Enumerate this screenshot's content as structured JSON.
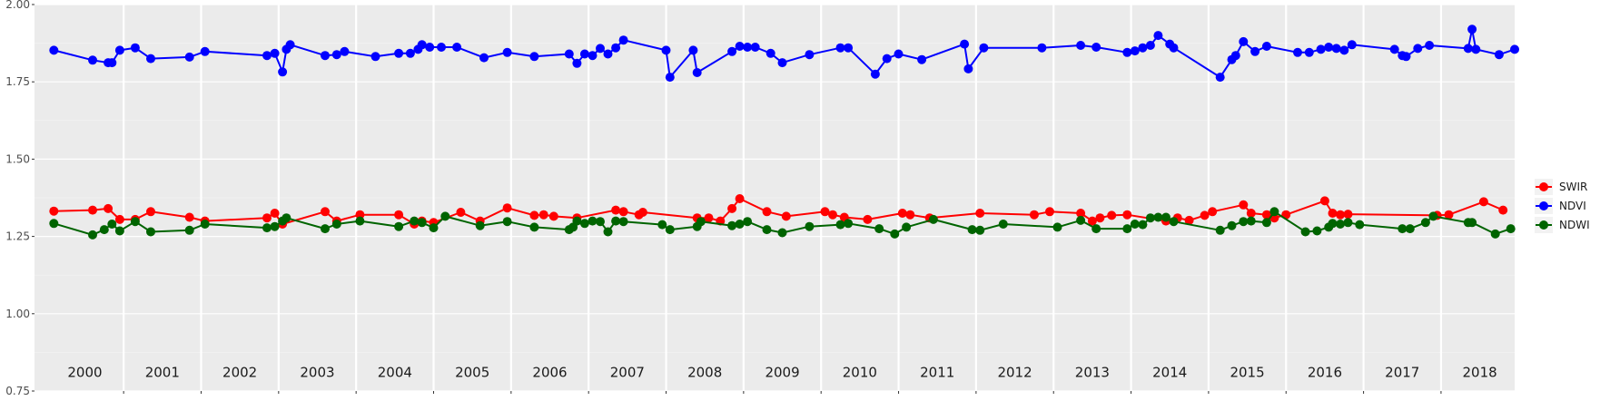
{
  "chart_data": {
    "type": "line",
    "xlim": [
      1999.85,
      2018.95
    ],
    "ylim": [
      0.75,
      2.0
    ],
    "y_ticks": [
      {
        "value": 0.75,
        "label": "0.75"
      },
      {
        "value": 1.0,
        "label": "1.00"
      },
      {
        "value": 1.25,
        "label": "1.25"
      },
      {
        "value": 1.5,
        "label": "1.50"
      },
      {
        "value": 1.75,
        "label": "1.75"
      },
      {
        "value": 2.0,
        "label": "2.00"
      }
    ],
    "year_labels": [
      "2000",
      "2001",
      "2002",
      "2003",
      "2004",
      "2005",
      "2006",
      "2007",
      "2008",
      "2009",
      "2010",
      "2011",
      "2012",
      "2013",
      "2014",
      "2015",
      "2016",
      "2017",
      "2018"
    ],
    "year_label_y": 0.81,
    "grid": true,
    "legend_position": "right",
    "series": [
      {
        "name": "SWIR",
        "color": "#ff0000",
        "points": [
          [
            2000.1,
            1.332
          ],
          [
            2000.6,
            1.335
          ],
          [
            2000.8,
            1.34
          ],
          [
            2000.95,
            1.305
          ],
          [
            2001.15,
            1.305
          ],
          [
            2001.35,
            1.33
          ],
          [
            2001.85,
            1.312
          ],
          [
            2002.05,
            1.3
          ],
          [
            2002.85,
            1.31
          ],
          [
            2002.95,
            1.325
          ],
          [
            2003.05,
            1.29
          ],
          [
            2003.6,
            1.33
          ],
          [
            2003.75,
            1.3
          ],
          [
            2004.05,
            1.32
          ],
          [
            2004.55,
            1.32
          ],
          [
            2004.75,
            1.29
          ],
          [
            2004.85,
            1.3
          ],
          [
            2005.0,
            1.295
          ],
          [
            2005.35,
            1.328
          ],
          [
            2005.6,
            1.3
          ],
          [
            2005.95,
            1.342
          ],
          [
            2006.3,
            1.318
          ],
          [
            2006.42,
            1.32
          ],
          [
            2006.55,
            1.315
          ],
          [
            2006.85,
            1.31
          ],
          [
            2007.35,
            1.335
          ],
          [
            2007.45,
            1.33
          ],
          [
            2007.65,
            1.32
          ],
          [
            2007.7,
            1.328
          ],
          [
            2008.4,
            1.31
          ],
          [
            2008.55,
            1.31
          ],
          [
            2008.7,
            1.3
          ],
          [
            2008.85,
            1.34
          ],
          [
            2008.95,
            1.372
          ],
          [
            2009.3,
            1.33
          ],
          [
            2009.55,
            1.315
          ],
          [
            2010.05,
            1.33
          ],
          [
            2010.15,
            1.32
          ],
          [
            2010.3,
            1.312
          ],
          [
            2010.6,
            1.305
          ],
          [
            2011.05,
            1.325
          ],
          [
            2011.15,
            1.32
          ],
          [
            2011.4,
            1.31
          ],
          [
            2012.05,
            1.325
          ],
          [
            2012.75,
            1.32
          ],
          [
            2012.95,
            1.33
          ],
          [
            2013.35,
            1.325
          ],
          [
            2013.5,
            1.3
          ],
          [
            2013.6,
            1.31
          ],
          [
            2013.75,
            1.318
          ],
          [
            2013.95,
            1.32
          ],
          [
            2014.45,
            1.3
          ],
          [
            2014.6,
            1.31
          ],
          [
            2014.75,
            1.302
          ],
          [
            2014.95,
            1.318
          ],
          [
            2015.05,
            1.33
          ],
          [
            2015.45,
            1.352
          ],
          [
            2015.55,
            1.325
          ],
          [
            2015.75,
            1.32
          ],
          [
            2015.85,
            1.31
          ],
          [
            2016.0,
            1.32
          ],
          [
            2016.5,
            1.365
          ],
          [
            2016.6,
            1.325
          ],
          [
            2016.7,
            1.32
          ],
          [
            2016.8,
            1.322
          ],
          [
            2017.95,
            1.318
          ],
          [
            2018.1,
            1.32
          ],
          [
            2018.55,
            1.362
          ],
          [
            2018.8,
            1.335
          ]
        ]
      },
      {
        "name": "NDVI",
        "color": "#0000ff",
        "points": [
          [
            2000.1,
            1.852
          ],
          [
            2000.6,
            1.82
          ],
          [
            2000.8,
            1.812
          ],
          [
            2000.85,
            1.812
          ],
          [
            2000.95,
            1.852
          ],
          [
            2001.15,
            1.86
          ],
          [
            2001.35,
            1.825
          ],
          [
            2001.85,
            1.83
          ],
          [
            2002.05,
            1.848
          ],
          [
            2002.85,
            1.835
          ],
          [
            2002.95,
            1.842
          ],
          [
            2003.05,
            1.782
          ],
          [
            2003.1,
            1.855
          ],
          [
            2003.15,
            1.87
          ],
          [
            2003.6,
            1.835
          ],
          [
            2003.75,
            1.838
          ],
          [
            2003.85,
            1.848
          ],
          [
            2004.25,
            1.832
          ],
          [
            2004.55,
            1.842
          ],
          [
            2004.7,
            1.842
          ],
          [
            2004.8,
            1.855
          ],
          [
            2004.85,
            1.87
          ],
          [
            2004.95,
            1.862
          ],
          [
            2005.1,
            1.862
          ],
          [
            2005.3,
            1.862
          ],
          [
            2005.65,
            1.828
          ],
          [
            2005.95,
            1.845
          ],
          [
            2006.3,
            1.832
          ],
          [
            2006.75,
            1.84
          ],
          [
            2006.85,
            1.81
          ],
          [
            2006.95,
            1.84
          ],
          [
            2007.05,
            1.835
          ],
          [
            2007.15,
            1.858
          ],
          [
            2007.25,
            1.84
          ],
          [
            2007.35,
            1.86
          ],
          [
            2007.45,
            1.885
          ],
          [
            2008.0,
            1.852
          ],
          [
            2008.05,
            1.765
          ],
          [
            2008.35,
            1.852
          ],
          [
            2008.4,
            1.78
          ],
          [
            2008.85,
            1.848
          ],
          [
            2008.95,
            1.865
          ],
          [
            2009.05,
            1.862
          ],
          [
            2009.15,
            1.862
          ],
          [
            2009.35,
            1.842
          ],
          [
            2009.5,
            1.812
          ],
          [
            2009.85,
            1.838
          ],
          [
            2010.25,
            1.86
          ],
          [
            2010.35,
            1.86
          ],
          [
            2010.7,
            1.775
          ],
          [
            2010.85,
            1.825
          ],
          [
            2011.0,
            1.84
          ],
          [
            2011.3,
            1.822
          ],
          [
            2011.85,
            1.872
          ],
          [
            2011.9,
            1.792
          ],
          [
            2012.1,
            1.86
          ],
          [
            2012.85,
            1.86
          ],
          [
            2013.35,
            1.868
          ],
          [
            2013.55,
            1.862
          ],
          [
            2013.95,
            1.845
          ],
          [
            2014.05,
            1.85
          ],
          [
            2014.15,
            1.86
          ],
          [
            2014.25,
            1.868
          ],
          [
            2014.35,
            1.9
          ],
          [
            2014.5,
            1.872
          ],
          [
            2014.55,
            1.86
          ],
          [
            2015.15,
            1.765
          ],
          [
            2015.3,
            1.822
          ],
          [
            2015.35,
            1.835
          ],
          [
            2015.45,
            1.88
          ],
          [
            2015.6,
            1.848
          ],
          [
            2015.75,
            1.865
          ],
          [
            2016.15,
            1.845
          ],
          [
            2016.3,
            1.845
          ],
          [
            2016.45,
            1.855
          ],
          [
            2016.55,
            1.862
          ],
          [
            2016.65,
            1.858
          ],
          [
            2016.75,
            1.852
          ],
          [
            2016.85,
            1.87
          ],
          [
            2017.4,
            1.855
          ],
          [
            2017.5,
            1.835
          ],
          [
            2017.55,
            1.832
          ],
          [
            2017.7,
            1.858
          ],
          [
            2017.85,
            1.868
          ],
          [
            2018.35,
            1.858
          ],
          [
            2018.4,
            1.92
          ],
          [
            2018.45,
            1.855
          ],
          [
            2018.75,
            1.838
          ],
          [
            2018.95,
            1.855
          ]
        ]
      },
      {
        "name": "NDWI",
        "color": "#006400",
        "points": [
          [
            2000.1,
            1.292
          ],
          [
            2000.6,
            1.255
          ],
          [
            2000.75,
            1.272
          ],
          [
            2000.85,
            1.29
          ],
          [
            2000.95,
            1.268
          ],
          [
            2001.15,
            1.298
          ],
          [
            2001.35,
            1.265
          ],
          [
            2001.85,
            1.27
          ],
          [
            2002.05,
            1.29
          ],
          [
            2002.85,
            1.278
          ],
          [
            2002.95,
            1.282
          ],
          [
            2003.05,
            1.3
          ],
          [
            2003.1,
            1.31
          ],
          [
            2003.6,
            1.275
          ],
          [
            2003.75,
            1.29
          ],
          [
            2004.05,
            1.3
          ],
          [
            2004.55,
            1.282
          ],
          [
            2004.75,
            1.3
          ],
          [
            2004.85,
            1.295
          ],
          [
            2005.0,
            1.278
          ],
          [
            2005.15,
            1.315
          ],
          [
            2005.6,
            1.285
          ],
          [
            2005.95,
            1.298
          ],
          [
            2006.3,
            1.28
          ],
          [
            2006.75,
            1.272
          ],
          [
            2006.8,
            1.28
          ],
          [
            2006.85,
            1.3
          ],
          [
            2006.95,
            1.292
          ],
          [
            2007.05,
            1.3
          ],
          [
            2007.15,
            1.298
          ],
          [
            2007.25,
            1.265
          ],
          [
            2007.35,
            1.3
          ],
          [
            2007.45,
            1.298
          ],
          [
            2007.95,
            1.288
          ],
          [
            2008.05,
            1.272
          ],
          [
            2008.4,
            1.282
          ],
          [
            2008.45,
            1.298
          ],
          [
            2008.85,
            1.285
          ],
          [
            2008.95,
            1.29
          ],
          [
            2009.05,
            1.298
          ],
          [
            2009.3,
            1.272
          ],
          [
            2009.5,
            1.262
          ],
          [
            2009.85,
            1.282
          ],
          [
            2010.25,
            1.288
          ],
          [
            2010.35,
            1.292
          ],
          [
            2010.75,
            1.275
          ],
          [
            2010.95,
            1.258
          ],
          [
            2011.1,
            1.28
          ],
          [
            2011.45,
            1.305
          ],
          [
            2011.95,
            1.272
          ],
          [
            2012.05,
            1.27
          ],
          [
            2012.35,
            1.29
          ],
          [
            2013.05,
            1.28
          ],
          [
            2013.35,
            1.302
          ],
          [
            2013.55,
            1.275
          ],
          [
            2013.95,
            1.275
          ],
          [
            2014.05,
            1.29
          ],
          [
            2014.15,
            1.288
          ],
          [
            2014.25,
            1.31
          ],
          [
            2014.35,
            1.312
          ],
          [
            2014.45,
            1.312
          ],
          [
            2014.55,
            1.298
          ],
          [
            2015.15,
            1.27
          ],
          [
            2015.3,
            1.285
          ],
          [
            2015.45,
            1.298
          ],
          [
            2015.55,
            1.3
          ],
          [
            2015.75,
            1.295
          ],
          [
            2015.85,
            1.33
          ],
          [
            2016.25,
            1.265
          ],
          [
            2016.4,
            1.268
          ],
          [
            2016.55,
            1.28
          ],
          [
            2016.6,
            1.292
          ],
          [
            2016.7,
            1.29
          ],
          [
            2016.8,
            1.295
          ],
          [
            2016.95,
            1.288
          ],
          [
            2017.5,
            1.275
          ],
          [
            2017.6,
            1.275
          ],
          [
            2017.8,
            1.295
          ],
          [
            2017.9,
            1.315
          ],
          [
            2018.35,
            1.295
          ],
          [
            2018.4,
            1.295
          ],
          [
            2018.7,
            1.258
          ],
          [
            2018.9,
            1.275
          ]
        ]
      }
    ]
  }
}
